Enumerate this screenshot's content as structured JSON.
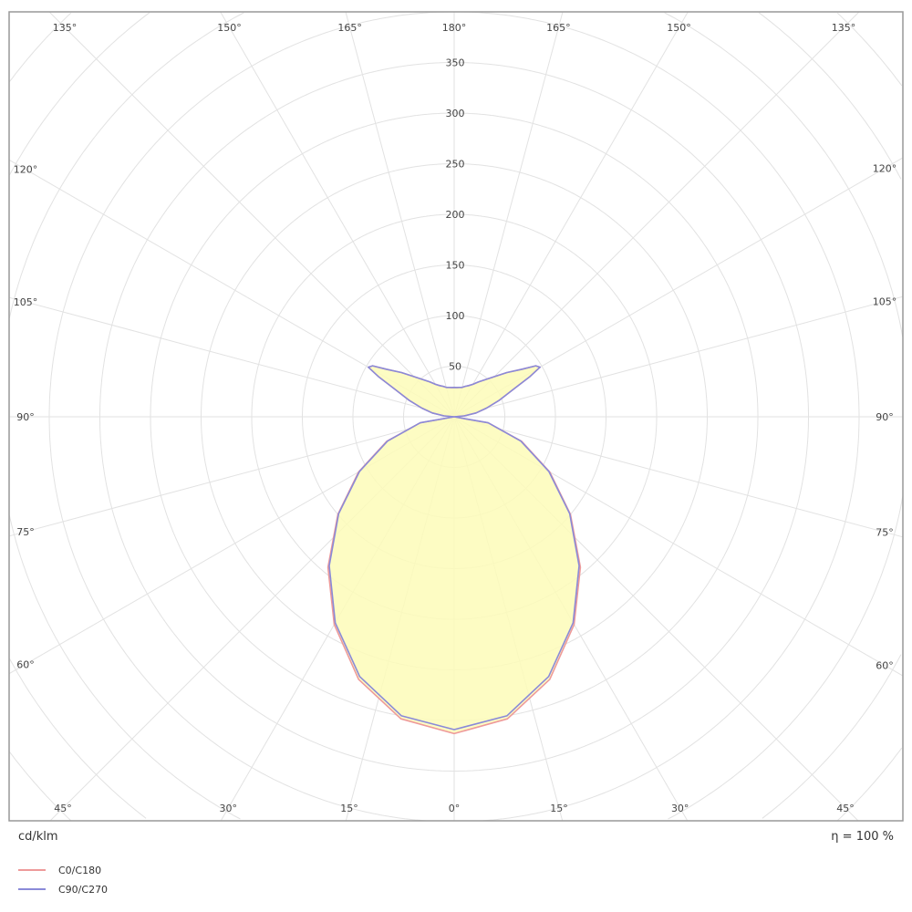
{
  "chart_data": {
    "type": "polar-line",
    "unit_label": "cd/klm",
    "efficiency_label": "η = 100 %",
    "radial_ticks": [
      50,
      100,
      150,
      200,
      250,
      300,
      350
    ],
    "radial_tick_labels": [
      "50",
      "100",
      "150",
      "200",
      "250",
      "300",
      "350"
    ],
    "angle_labels": {
      "bottom": [
        "45°",
        "30°",
        "15°",
        "0°",
        "15°",
        "30°",
        "45°"
      ],
      "top": [
        "135°",
        "150°",
        "165°",
        "180°",
        "165°",
        "150°",
        "135°"
      ],
      "left": [
        "120°",
        "105°",
        "90°",
        "75°",
        "60°"
      ],
      "right": [
        "120°",
        "105°",
        "90°",
        "75°",
        "60°"
      ]
    },
    "grid": true,
    "fill_color": "#fdfbb8",
    "legend_placement": "bottom-left",
    "series": [
      {
        "name": "C0/C180",
        "color": "#ee9a9a",
        "gamma": [
          0,
          10,
          20,
          30,
          40,
          50,
          60,
          70,
          80,
          90,
          95,
          100,
          105,
          110,
          115,
          118,
          120,
          122,
          125,
          130,
          135,
          140,
          145,
          150,
          155,
          160,
          165,
          170,
          175,
          180
        ],
        "values": [
          313,
          303,
          276,
          237,
          194,
          150,
          109,
          71,
          34,
          0,
          10,
          22,
          33,
          47,
          65,
          85,
          98,
          95,
          82,
          68,
          56,
          48,
          42,
          37,
          34,
          32,
          30,
          29.5,
          29,
          29
        ]
      },
      {
        "name": "C90/C270",
        "color": "#8a8ad8",
        "gamma": [
          0,
          10,
          20,
          30,
          40,
          50,
          60,
          70,
          80,
          90,
          95,
          100,
          105,
          110,
          115,
          118,
          120,
          122,
          125,
          130,
          135,
          140,
          145,
          150,
          155,
          160,
          165,
          170,
          175,
          180
        ],
        "values": [
          309,
          300,
          273,
          235,
          192,
          149,
          108,
          70,
          34,
          0,
          10,
          22,
          33,
          47,
          65,
          85,
          98,
          95,
          82,
          68,
          56,
          48,
          42,
          37,
          34,
          32,
          30,
          29.5,
          29,
          29
        ]
      }
    ]
  }
}
